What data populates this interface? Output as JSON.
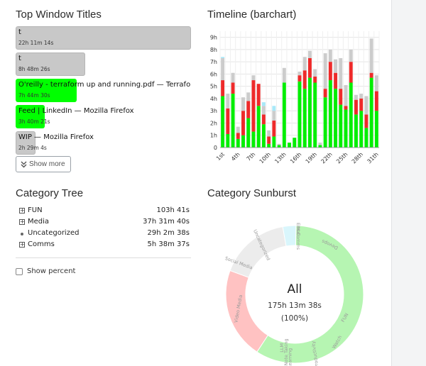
{
  "top_windows": {
    "title": "Top Window Titles",
    "items": [
      {
        "title": "t",
        "duration": "22h 11m 14s",
        "color": "#c8c8c8",
        "fraction": 1.0
      },
      {
        "title": "t",
        "duration": "8h 48m 26s",
        "color": "#c8c8c8",
        "fraction": 0.397
      },
      {
        "title": "O'reilly - terraform up and running.pdf — Terraform",
        "duration": "7h 44m 30s",
        "color": "#00ff00",
        "fraction": 0.349
      },
      {
        "title": "Feed | LinkedIn — Mozilla Firefox",
        "duration": "3h 40m 21s",
        "color": "#00ff00",
        "fraction": 0.166
      },
      {
        "title": "WIP — Mozilla Firefox",
        "duration": "2h 29m 4s",
        "color": "#c8c8c8",
        "fraction": 0.112
      }
    ],
    "show_more_label": "Show more",
    "show_more_icon": "double-chevron-down-icon"
  },
  "timeline": {
    "title": "Timeline (barchart)"
  },
  "chart_data": {
    "type": "bar",
    "stacked": true,
    "y_tick_labels": [
      "0",
      "1h",
      "2h",
      "3h",
      "4h",
      "5h",
      "6h",
      "7h",
      "8h",
      "9h"
    ],
    "ylim": [
      0,
      9.5
    ],
    "x_tick_labels": [
      "1st",
      "4th",
      "7th",
      "10th",
      "13th",
      "16th",
      "19th",
      "22th",
      "25th",
      "28th",
      "31th"
    ],
    "grid": true,
    "days": 31,
    "series": [
      {
        "color": "#00ee00",
        "values": [
          4.2,
          1.1,
          4.4,
          0.7,
          1.0,
          2.4,
          1.3,
          3.4,
          1.9,
          0.3,
          0.9,
          0.2,
          5.3,
          0.4,
          0.8,
          5.4,
          4.8,
          5.7,
          5.3,
          0.2,
          4.1,
          5.5,
          4.8,
          3.5,
          3.1,
          5.3,
          2.7,
          3.0,
          1.6,
          5.7,
          3.0
        ]
      },
      {
        "color": "#ee2a2a",
        "values": [
          1.3,
          2.1,
          0.9,
          0.5,
          2.0,
          1.4,
          4.2,
          1.8,
          0.8,
          0.6,
          1.3,
          0.0,
          0.0,
          0.0,
          0.0,
          0.5,
          1.5,
          1.6,
          0.5,
          0.0,
          0.7,
          1.5,
          1.3,
          1.3,
          0.3,
          1.7,
          1.2,
          1.0,
          1.1,
          0.4,
          1.6
        ]
      },
      {
        "color": "#cccccc",
        "values": [
          1.8,
          1.2,
          0.8,
          0.5,
          1.1,
          0.7,
          0.4,
          0.0,
          0.7,
          0.5,
          0.8,
          0.1,
          1.2,
          0.0,
          0.0,
          0.3,
          1.1,
          0.6,
          0.6,
          0.2,
          2.9,
          1.0,
          1.1,
          2.5,
          1.7,
          1.0,
          0.4,
          0.4,
          1.5,
          2.8,
          1.3
        ]
      },
      {
        "color": "#a8e8f8",
        "values": [
          0.1,
          0.0,
          0.0,
          0.0,
          0.0,
          0.0,
          0.0,
          0.0,
          0.3,
          0.0,
          0.4,
          0.0,
          0.0,
          0.0,
          0.0,
          0.0,
          0.0,
          0.0,
          0.0,
          0.0,
          0.0,
          0.0,
          0.0,
          0.0,
          0.0,
          0.0,
          0.0,
          0.0,
          0.0,
          0.0,
          0.0
        ]
      }
    ]
  },
  "category_tree": {
    "title": "Category Tree",
    "rows": [
      {
        "marker": "plus",
        "label": "FUN",
        "value": "103h 41s"
      },
      {
        "marker": "plus",
        "label": "Media",
        "value": "37h 31m 40s"
      },
      {
        "marker": "dot",
        "label": "Uncategorized",
        "value": "29h 2m 38s"
      },
      {
        "marker": "plus",
        "label": "Comms",
        "value": "5h 38m 37s"
      }
    ],
    "show_percent_label": "Show percent"
  },
  "sunburst": {
    "title": "Category Sunburst",
    "center_label": "All",
    "center_total": "175h 13m 38s",
    "center_percent": "(100%)",
    "segments": [
      {
        "name": "fun",
        "fraction": 0.589,
        "color": "#b6f5b2"
      },
      {
        "name": "media",
        "fraction": 0.214,
        "color": "#ffc2c2"
      },
      {
        "name": "uncategorized",
        "fraction": 0.166,
        "color": "#ececec"
      },
      {
        "name": "comms",
        "fraction": 0.031,
        "color": "#d9f6fc"
      }
    ],
    "outer_labels": {
      "fun_a": "Devops",
      "fun_b": "FUN",
      "fun_c": "Productivity",
      "fun_d": "Learning",
      "fun_e": "Note Taking",
      "fun_f": "LLM",
      "fun_g": "Watch",
      "media_a": "Social Media",
      "media_b": "Video Media",
      "uncat": "Uncategorized",
      "comms_a": "Email",
      "comms_b": "IM Comms"
    }
  }
}
